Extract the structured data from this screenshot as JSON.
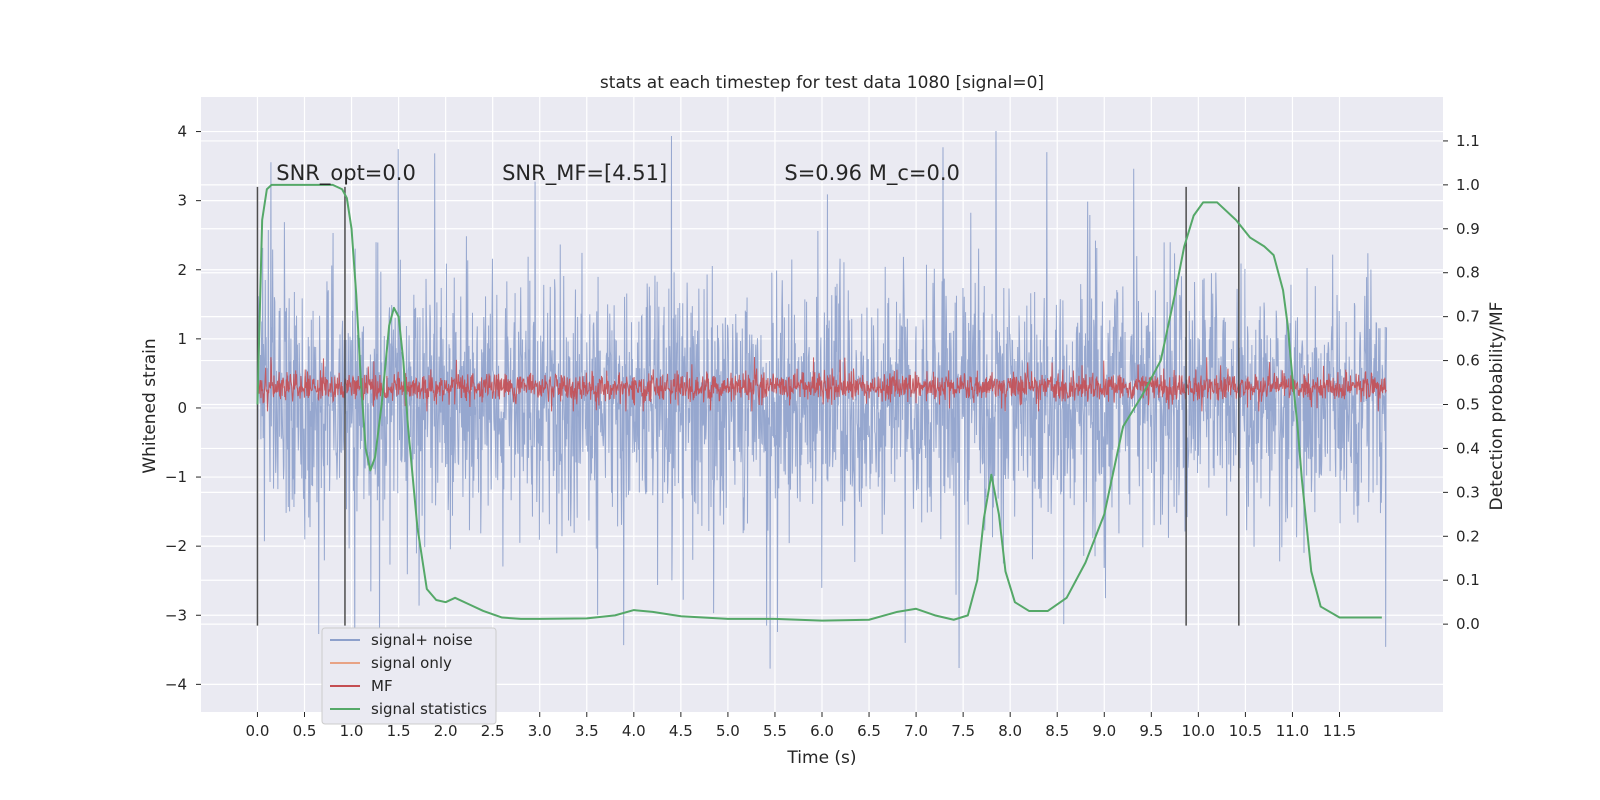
{
  "chart_data": {
    "type": "line",
    "title": "stats at each timestep for test data 1080 [signal=0]",
    "xlabel": "Time (s)",
    "ylabel_left": "Whitened strain",
    "ylabel_right": "Detection probability/MF",
    "xlim": [
      -0.6,
      12.6
    ],
    "ylim_left": [
      -4.4,
      4.5
    ],
    "ylim_right": [
      -0.2,
      1.2
    ],
    "x_ticks": [
      0.0,
      0.5,
      1.0,
      1.5,
      2.0,
      2.5,
      3.0,
      3.5,
      4.0,
      4.5,
      5.0,
      5.5,
      6.0,
      6.5,
      7.0,
      7.5,
      8.0,
      8.5,
      9.0,
      9.5,
      10.0,
      10.5,
      11.0,
      11.5
    ],
    "x_tick_labels": [
      "0.0",
      "0.5",
      "1.0",
      "1.5",
      "2.0",
      "2.5",
      "3.0",
      "3.5",
      "4.0",
      "4.5",
      "5.0",
      "5.5",
      "6.0",
      "6.5",
      "7.0",
      "7.5",
      "8.0",
      "8.5",
      "9.0",
      "9.5",
      "10.0",
      "10.5",
      "11.0",
      "11.5"
    ],
    "y_left_ticks": [
      -4,
      -3,
      -2,
      -1,
      0,
      1,
      2,
      3,
      4
    ],
    "y_left_tick_labels": [
      "−4",
      "−3",
      "−2",
      "−1",
      "0",
      "1",
      "2",
      "3",
      "4"
    ],
    "y_right_ticks": [
      0.0,
      0.1,
      0.2,
      0.3,
      0.4,
      0.5,
      0.6,
      0.7,
      0.8,
      0.9,
      1.0,
      1.1
    ],
    "y_right_tick_labels": [
      "0.0",
      "0.1",
      "0.2",
      "0.3",
      "0.4",
      "0.5",
      "0.6",
      "0.7",
      "0.8",
      "0.9",
      "1.0",
      "1.1"
    ],
    "grid": true,
    "background_color": "#eaeaf2",
    "annotations": [
      {
        "text": "SNR_opt=0.0",
        "x": 0.2,
        "y": 3.3
      },
      {
        "text": "SNR_MF=[4.51]",
        "x": 2.6,
        "y": 3.3
      },
      {
        "text": "S=0.96   M_c=0.0",
        "x": 5.6,
        "y": 3.3
      }
    ],
    "vertical_markers": {
      "x": [
        0.0,
        0.93,
        9.87,
        10.43
      ],
      "y_range": [
        -3.15,
        3.2
      ],
      "color": "#4d4d4d"
    },
    "legend": {
      "position": "lower-left",
      "entries": [
        "signal+ noise",
        "signal only",
        "MF",
        "signal statistics"
      ]
    },
    "series": [
      {
        "name": "signal+ noise",
        "axis": "left",
        "color": "#8da0cb",
        "render": "dense-noise",
        "x_range": [
          0.0,
          12.0
        ],
        "typical_low": -2.0,
        "typical_high": 2.2,
        "min": -4.0,
        "max": 4.1
      },
      {
        "name": "signal only",
        "axis": "left",
        "color": "#e8a385",
        "values": []
      },
      {
        "name": "MF",
        "axis": "left",
        "color": "#c44e52",
        "render": "dense-noise",
        "x_range": [
          0.0,
          12.0
        ],
        "typical_low": 0.05,
        "typical_high": 0.55,
        "min": -0.05,
        "max": 0.75
      },
      {
        "name": "signal statistics",
        "axis": "right",
        "color": "#55a868",
        "x": [
          0.0,
          0.05,
          0.1,
          0.15,
          0.25,
          0.4,
          0.6,
          0.8,
          0.9,
          0.95,
          1.0,
          1.05,
          1.1,
          1.15,
          1.2,
          1.25,
          1.32,
          1.4,
          1.45,
          1.5,
          1.55,
          1.6,
          1.7,
          1.8,
          1.9,
          2.0,
          2.1,
          2.25,
          2.4,
          2.6,
          2.8,
          3.0,
          3.5,
          3.8,
          4.0,
          4.2,
          4.5,
          5.0,
          5.5,
          6.0,
          6.5,
          6.8,
          7.0,
          7.2,
          7.4,
          7.55,
          7.65,
          7.72,
          7.8,
          7.88,
          7.95,
          8.05,
          8.2,
          8.4,
          8.6,
          8.8,
          9.0,
          9.2,
          9.4,
          9.6,
          9.75,
          9.85,
          9.95,
          10.05,
          10.2,
          10.4,
          10.55,
          10.7,
          10.8,
          10.9,
          10.95,
          11.0,
          11.05,
          11.1,
          11.2,
          11.3,
          11.5,
          11.7,
          11.95
        ],
        "values": [
          0.5,
          0.92,
          0.99,
          1.0,
          1.0,
          1.0,
          1.0,
          1.0,
          0.99,
          0.97,
          0.9,
          0.75,
          0.55,
          0.4,
          0.35,
          0.38,
          0.5,
          0.68,
          0.72,
          0.7,
          0.6,
          0.45,
          0.22,
          0.08,
          0.055,
          0.05,
          0.06,
          0.045,
          0.03,
          0.015,
          0.012,
          0.012,
          0.013,
          0.02,
          0.032,
          0.028,
          0.018,
          0.012,
          0.012,
          0.008,
          0.01,
          0.028,
          0.035,
          0.02,
          0.01,
          0.02,
          0.1,
          0.24,
          0.34,
          0.25,
          0.12,
          0.05,
          0.03,
          0.03,
          0.06,
          0.14,
          0.25,
          0.45,
          0.52,
          0.6,
          0.75,
          0.86,
          0.93,
          0.96,
          0.96,
          0.92,
          0.88,
          0.86,
          0.84,
          0.76,
          0.68,
          0.56,
          0.46,
          0.33,
          0.12,
          0.04,
          0.015,
          0.015,
          0.015
        ]
      }
    ]
  }
}
